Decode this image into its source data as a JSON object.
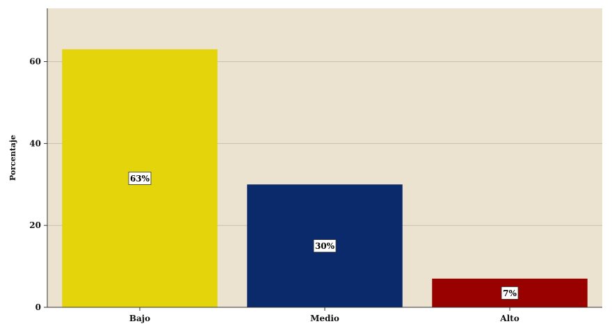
{
  "chart_data": {
    "type": "bar",
    "categories": [
      "Bajo",
      "Medio",
      "Alto"
    ],
    "values": [
      63,
      30,
      7
    ],
    "data_labels": [
      "63%",
      "30%",
      "7%"
    ],
    "colors": [
      "#e3d40b",
      "#0a2a6b",
      "#990000"
    ],
    "background": "#ebe2cf",
    "gridline_color": "#c8bfae",
    "title": "",
    "xlabel": "",
    "ylabel": "Porcentaje",
    "ylim": [
      0,
      73
    ],
    "yticks": [
      0,
      20,
      40,
      60
    ],
    "grid": true,
    "legend": "none"
  }
}
